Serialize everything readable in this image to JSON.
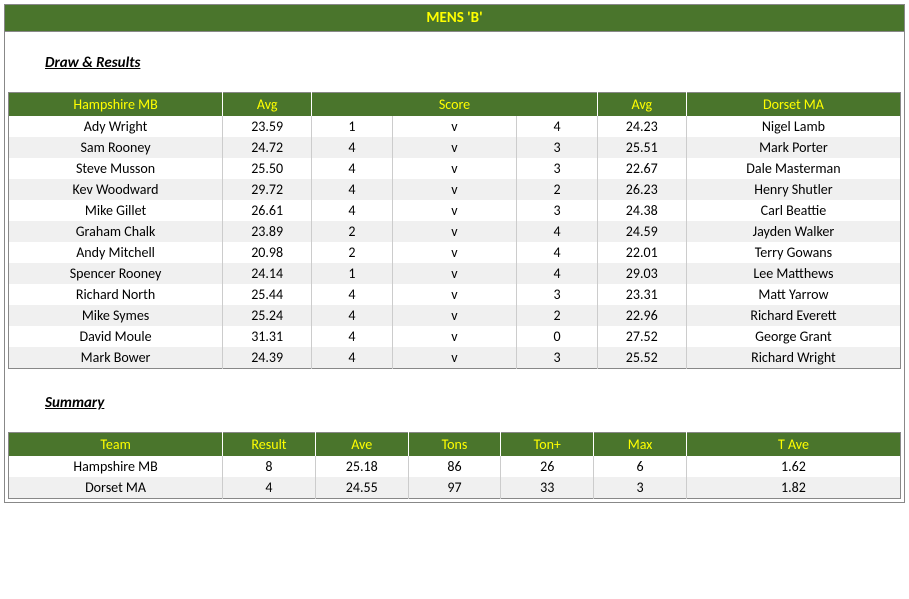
{
  "colors": {
    "header_bg": "#4a752c",
    "header_text": "#ffff00",
    "row_alt": "#f0f0f0",
    "row_bg": "#ffffff"
  },
  "title": "MENS 'B'",
  "sections": {
    "results_title": "Draw & Results",
    "summary_title": "Summary"
  },
  "results": {
    "headers": {
      "left_team": "Hampshire MB",
      "left_avg": "Avg",
      "score": "Score",
      "right_avg": "Avg",
      "right_team": "Dorset MA"
    },
    "rows": [
      {
        "lp": "Ady Wright",
        "la": "23.59",
        "ls": "1",
        "v": "v",
        "rs": "4",
        "ra": "24.23",
        "rp": "Nigel Lamb"
      },
      {
        "lp": "Sam Rooney",
        "la": "24.72",
        "ls": "4",
        "v": "v",
        "rs": "3",
        "ra": "25.51",
        "rp": "Mark Porter"
      },
      {
        "lp": "Steve Musson",
        "la": "25.50",
        "ls": "4",
        "v": "v",
        "rs": "3",
        "ra": "22.67",
        "rp": "Dale Masterman"
      },
      {
        "lp": "Kev Woodward",
        "la": "29.72",
        "ls": "4",
        "v": "v",
        "rs": "2",
        "ra": "26.23",
        "rp": "Henry Shutler"
      },
      {
        "lp": "Mike Gillet",
        "la": "26.61",
        "ls": "4",
        "v": "v",
        "rs": "3",
        "ra": "24.38",
        "rp": "Carl Beattie"
      },
      {
        "lp": "Graham Chalk",
        "la": "23.89",
        "ls": "2",
        "v": "v",
        "rs": "4",
        "ra": "24.59",
        "rp": "Jayden Walker"
      },
      {
        "lp": "Andy Mitchell",
        "la": "20.98",
        "ls": "2",
        "v": "v",
        "rs": "4",
        "ra": "22.01",
        "rp": "Terry Gowans"
      },
      {
        "lp": "Spencer Rooney",
        "la": "24.14",
        "ls": "1",
        "v": "v",
        "rs": "4",
        "ra": "29.03",
        "rp": "Lee Matthews"
      },
      {
        "lp": "Richard North",
        "la": "25.44",
        "ls": "4",
        "v": "v",
        "rs": "3",
        "ra": "23.31",
        "rp": "Matt Yarrow"
      },
      {
        "lp": "Mike Symes",
        "la": "25.24",
        "ls": "4",
        "v": "v",
        "rs": "2",
        "ra": "22.96",
        "rp": "Richard Everett"
      },
      {
        "lp": "David Moule",
        "la": "31.31",
        "ls": "4",
        "v": "v",
        "rs": "0",
        "ra": "27.52",
        "rp": "George Grant"
      },
      {
        "lp": "Mark Bower",
        "la": "24.39",
        "ls": "4",
        "v": "v",
        "rs": "3",
        "ra": "25.52",
        "rp": "Richard Wright"
      }
    ]
  },
  "summary": {
    "headers": {
      "team": "Team",
      "result": "Result",
      "ave": "Ave",
      "tons": "Tons",
      "tonplus": "Ton+",
      "max": "Max",
      "tave": "T Ave"
    },
    "rows": [
      {
        "team": "Hampshire MB",
        "result": "8",
        "ave": "25.18",
        "tons": "86",
        "tonplus": "26",
        "max": "6",
        "tave": "1.62"
      },
      {
        "team": "Dorset MA",
        "result": "4",
        "ave": "24.55",
        "tons": "97",
        "tonplus": "33",
        "max": "3",
        "tave": "1.82"
      }
    ]
  }
}
